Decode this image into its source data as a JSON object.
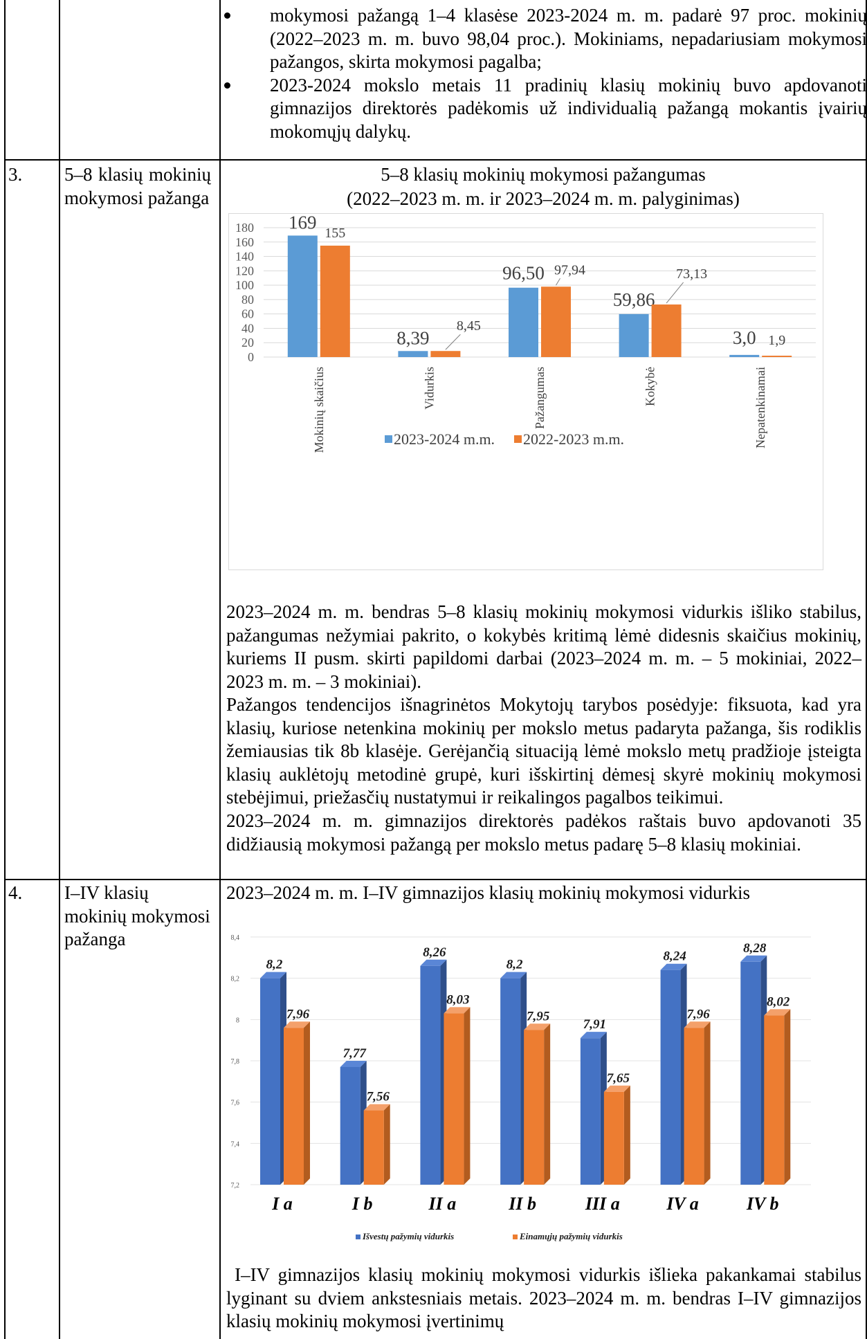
{
  "top_bullets": [
    "mokymosi pažangą 1–4 klasėse 2023-2024 m. m. padarė 97 proc. mokinių (2022–2023 m. m. buvo 98,04 proc.). Mokiniams, nepadariusiam mokymosi pažangos, skirta mokymosi pagalba;",
    "2023-2024 mokslo metais 11 pradinių klasių mokinių buvo apdovanoti gimnazijos direktorės padėkomis už individualią pažangą mokantis įvairių mokomųjų dalykų."
  ],
  "row3": {
    "num": "3.",
    "label": "5–8 klasių mokinių mokymosi pažanga",
    "chart_title_1": "5–8 klasių mokinių mokymosi pažangumas",
    "chart_title_2": "(2022–2023 m. m. ir 2023–2024 m. m. palyginimas)",
    "paragraphs": [
      "2023–2024 m. m. bendras 5–8 klasių mokinių mokymosi vidurkis išliko stabilus, pažangumas nežymiai pakrito, o kokybės kritimą lėmė didesnis skaičius mokinių, kuriems II pusm. skirti papildomi darbai (2023–2024 m. m. – 5 mokiniai, 2022–2023 m. m. – 3 mokiniai).",
      "Pažangos tendencijos išnagrinėtos Mokytojų tarybos posėdyje: fiksuota, kad yra klasių, kuriose netenkina mokinių per mokslo metus padaryta pažanga, šis rodiklis žemiausias tik 8b klasėje. Gerėjančią situaciją lėmė mokslo metų pradžioje įsteigta klasių auklėtojų metodinė grupė, kuri išskirtinį dėmesį skyrė mokinių mokymosi stebėjimui, priežasčių nustatymui ir reikalingos pagalbos teikimui.",
      "2023–2024 m. m. gimnazijos direktorės padėkos raštais buvo apdovanoti 35 didžiausią mokymosi pažangą per mokslo metus padarę 5–8 klasių mokiniai."
    ]
  },
  "row4": {
    "num": "4.",
    "label": "I–IV klasių mokinių mokymosi pažanga",
    "heading": "2023–2024 m. m. I–IV gimnazijos klasių mokinių mokymosi vidurkis",
    "paragraph": " I–IV gimnazijos klasių mokinių mokymosi vidurkis išlieka pakankamai stabilus lyginant su dviem ankstesniais metais. 2023–2024 m. m. bendras I–IV gimnazijos klasių mokinių mokymosi įvertinimų"
  },
  "chart_data": [
    {
      "type": "bar",
      "categories": [
        "Mokinių skaičius",
        "Vidurkis",
        "Pažangumas",
        "Kokybė",
        "Nepatenkinamai"
      ],
      "series": [
        {
          "name": "2023-2024 m.m.",
          "values": [
            169,
            8.39,
            96.5,
            59.86,
            3.0
          ],
          "labels": [
            "169",
            "8,39",
            "96,50",
            "59,86",
            "3,0"
          ],
          "color": "#5b9bd5"
        },
        {
          "name": "2022-2023 m.m.",
          "values": [
            155,
            8.45,
            97.94,
            73.13,
            1.9
          ],
          "labels": [
            "155",
            "8,45",
            "97,94",
            "73,13",
            "1,9"
          ],
          "color": "#ed7d31"
        }
      ],
      "title": "5–8 klasių mokinių mokymosi pažangumas (2022–2023 m. m. ir 2023–2024 m. m. palyginimas)",
      "ylim": [
        0,
        180
      ],
      "yticks": [
        "0",
        "20",
        "40",
        "60",
        "80",
        "100",
        "120",
        "140",
        "160",
        "180"
      ],
      "grid": true,
      "legend": "bottom"
    },
    {
      "type": "bar",
      "categories": [
        "I a",
        "I b",
        "II a",
        "II b",
        "III a",
        "IV a",
        "IV b"
      ],
      "series": [
        {
          "name": "Išvestų pažymių vidurkis",
          "values": [
            8.2,
            7.77,
            8.26,
            8.2,
            7.91,
            8.24,
            8.28
          ],
          "labels": [
            "8,2",
            "7,77",
            "8,26",
            "8,2",
            "7,91",
            "8,24",
            "8,28"
          ],
          "color": "#4472c4"
        },
        {
          "name": "Einamųjų pažymių vidurkis",
          "values": [
            7.96,
            7.56,
            8.03,
            7.95,
            7.65,
            7.96,
            8.02
          ],
          "labels": [
            "7,96",
            "7,56",
            "8,03",
            "7,95",
            "7,65",
            "7,96",
            "8,02"
          ],
          "color": "#ed7d31"
        }
      ],
      "ylim": [
        7.2,
        8.4
      ],
      "yticks": [
        "7,2",
        "7,4",
        "7,6",
        "7,8",
        "8",
        "8,2",
        "8,4"
      ],
      "grid": true,
      "legend": "bottom"
    }
  ]
}
